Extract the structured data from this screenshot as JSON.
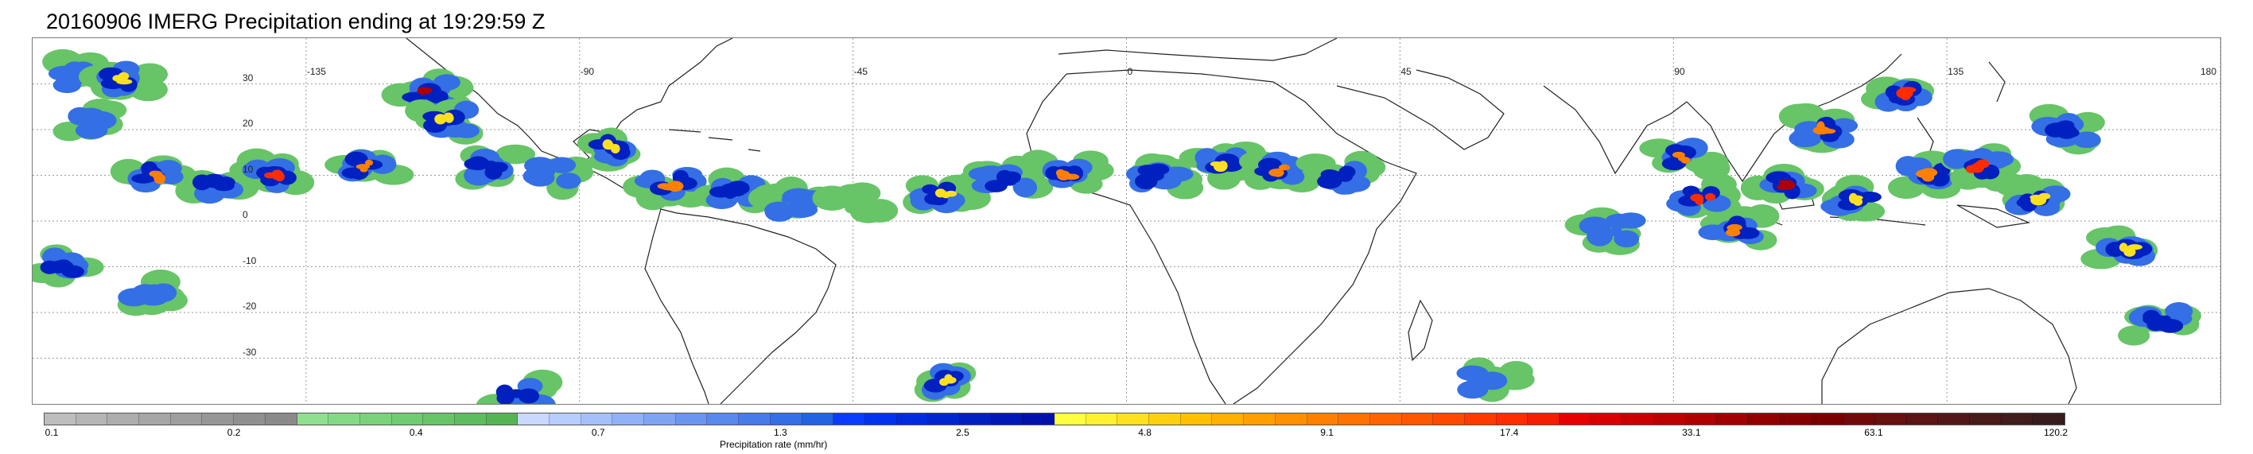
{
  "title": "20160906 IMERG Precipitation ending at 19:29:59 Z",
  "map": {
    "projection": "equirectangular",
    "lon_range": [
      -180,
      180
    ],
    "lat_range": [
      -40,
      40
    ],
    "gridlines": true,
    "lon_labels": [
      "-135",
      "-90",
      "-45",
      "0",
      "45",
      "90",
      "135",
      "180"
    ],
    "lon_values": [
      -135,
      -90,
      -45,
      0,
      45,
      90,
      135,
      180
    ],
    "lat_labels": [
      "30",
      "20",
      "10",
      "0",
      "-10",
      "-20",
      "-30"
    ],
    "lat_values": [
      30,
      20,
      10,
      0,
      -10,
      -20,
      -30
    ]
  },
  "colorbar": {
    "title": "Precipitation rate (mm/hr)",
    "tick_labels": [
      "0.1",
      "0.2",
      "0.4",
      "0.7",
      "1.3",
      "2.5",
      "4.8",
      "9.1",
      "17.4",
      "33.1",
      "63.1",
      "120.2"
    ],
    "colors": [
      "#bdbdbd",
      "#b5b5b5",
      "#adadad",
      "#a6a6a6",
      "#9e9e9e",
      "#979797",
      "#909090",
      "#8a8a8a",
      "#8ee08e",
      "#84da84",
      "#7ad37a",
      "#70cc70",
      "#67c467",
      "#5ebd5e",
      "#55b555",
      "#c8d8ff",
      "#b7ccff",
      "#a4bff9",
      "#90b1f5",
      "#7ea4f2",
      "#6b96ee",
      "#5989eb",
      "#477ce8",
      "#346fe5",
      "#2363e2",
      "#0a3cff",
      "#0033f0",
      "#002ce0",
      "#0026d0",
      "#0020c0",
      "#0018b5",
      "#0012aa",
      "#ffff40",
      "#fff030",
      "#ffe020",
      "#ffd010",
      "#ffc000",
      "#ffb000",
      "#ffa000",
      "#ff9000",
      "#ff8000",
      "#ff7200",
      "#ff6400",
      "#ff5600",
      "#ff4800",
      "#ff3a00",
      "#ff2c00",
      "#f51e00",
      "#e60000",
      "#d80000",
      "#ca0000",
      "#bc0000",
      "#ae0000",
      "#a00000",
      "#920000",
      "#840000",
      "#7a0000",
      "#700a0a",
      "#661010",
      "#5c1414",
      "#521818",
      "#481a1a",
      "#401c1c",
      "#381c1c"
    ]
  },
  "precip_cells": [
    {
      "lon": -172,
      "lat": 32,
      "rate": 1.3
    },
    {
      "lon": -165,
      "lat": 31,
      "rate": 4.8
    },
    {
      "lon": -170,
      "lat": 22,
      "rate": 1.3
    },
    {
      "lon": -160,
      "lat": 10,
      "rate": 9.1
    },
    {
      "lon": -150,
      "lat": 8,
      "rate": 2.5
    },
    {
      "lon": -140,
      "lat": 10,
      "rate": 17.4
    },
    {
      "lon": -125,
      "lat": 12,
      "rate": 9.1
    },
    {
      "lon": -115,
      "lat": 28,
      "rate": 33.1
    },
    {
      "lon": -112,
      "lat": 22,
      "rate": 4.8
    },
    {
      "lon": -105,
      "lat": 12,
      "rate": 2.5
    },
    {
      "lon": -95,
      "lat": 10,
      "rate": 1.3
    },
    {
      "lon": -85,
      "lat": 16,
      "rate": 4.8
    },
    {
      "lon": -75,
      "lat": 8,
      "rate": 9.1
    },
    {
      "lon": -65,
      "lat": 6,
      "rate": 2.5
    },
    {
      "lon": -55,
      "lat": 4,
      "rate": 1.3
    },
    {
      "lon": -45,
      "lat": 3,
      "rate": 0.4
    },
    {
      "lon": -30,
      "lat": 6,
      "rate": 4.8
    },
    {
      "lon": -20,
      "lat": 9,
      "rate": 2.5
    },
    {
      "lon": -10,
      "lat": 10,
      "rate": 9.1
    },
    {
      "lon": 5,
      "lat": 10,
      "rate": 2.5
    },
    {
      "lon": 15,
      "lat": 12,
      "rate": 4.8
    },
    {
      "lon": 25,
      "lat": 11,
      "rate": 9.1
    },
    {
      "lon": 35,
      "lat": 10,
      "rate": 2.5
    },
    {
      "lon": 80,
      "lat": -2,
      "rate": 1.3
    },
    {
      "lon": 92,
      "lat": 14,
      "rate": 9.1
    },
    {
      "lon": 95,
      "lat": 5,
      "rate": 17.4
    },
    {
      "lon": 100,
      "lat": -2,
      "rate": 9.1
    },
    {
      "lon": 108,
      "lat": 8,
      "rate": 33.1
    },
    {
      "lon": 115,
      "lat": 20,
      "rate": 9.1
    },
    {
      "lon": 120,
      "lat": 5,
      "rate": 4.8
    },
    {
      "lon": 128,
      "lat": 28,
      "rate": 17.4
    },
    {
      "lon": 132,
      "lat": 10,
      "rate": 9.1
    },
    {
      "lon": 140,
      "lat": 12,
      "rate": 17.4
    },
    {
      "lon": 150,
      "lat": 5,
      "rate": 4.8
    },
    {
      "lon": 155,
      "lat": 20,
      "rate": 2.5
    },
    {
      "lon": 165,
      "lat": -6,
      "rate": 4.8
    },
    {
      "lon": -175,
      "lat": -10,
      "rate": 2.5
    },
    {
      "lon": -160,
      "lat": -16,
      "rate": 1.3
    },
    {
      "lon": -100,
      "lat": -38,
      "rate": 2.5
    },
    {
      "lon": -30,
      "lat": -35,
      "rate": 4.8
    },
    {
      "lon": 60,
      "lat": -35,
      "rate": 1.3
    },
    {
      "lon": 170,
      "lat": -22,
      "rate": 2.5
    }
  ]
}
